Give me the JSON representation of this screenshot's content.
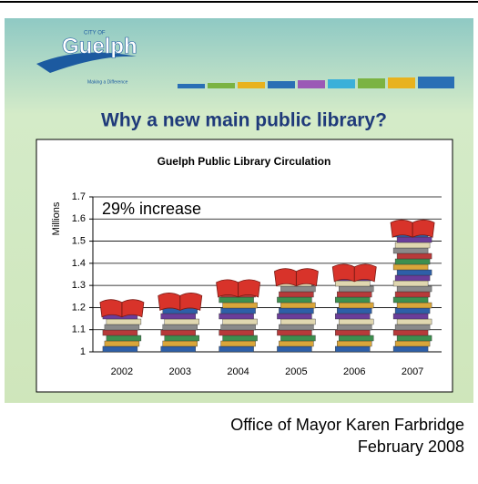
{
  "logo": {
    "prefix": "CITY OF",
    "name": "Guelph",
    "tagline": "Making a Difference"
  },
  "slide_title": "Why a new main public library?",
  "footer": {
    "line1": "Office of Mayor Karen Farbridge",
    "line2": "February 2008"
  },
  "chart_data": {
    "type": "bar",
    "title": "Guelph Public Library Circulation",
    "y_label": "Millions",
    "annotation": "29% increase",
    "categories": [
      "2002",
      "2003",
      "2004",
      "2005",
      "2006",
      "2007"
    ],
    "values": [
      1.24,
      1.27,
      1.33,
      1.38,
      1.4,
      1.6
    ],
    "ylim": [
      1,
      1.7
    ],
    "yticks": [
      1,
      1.1,
      1.2,
      1.3,
      1.4,
      1.5,
      1.6,
      1.7
    ],
    "grid": true
  }
}
